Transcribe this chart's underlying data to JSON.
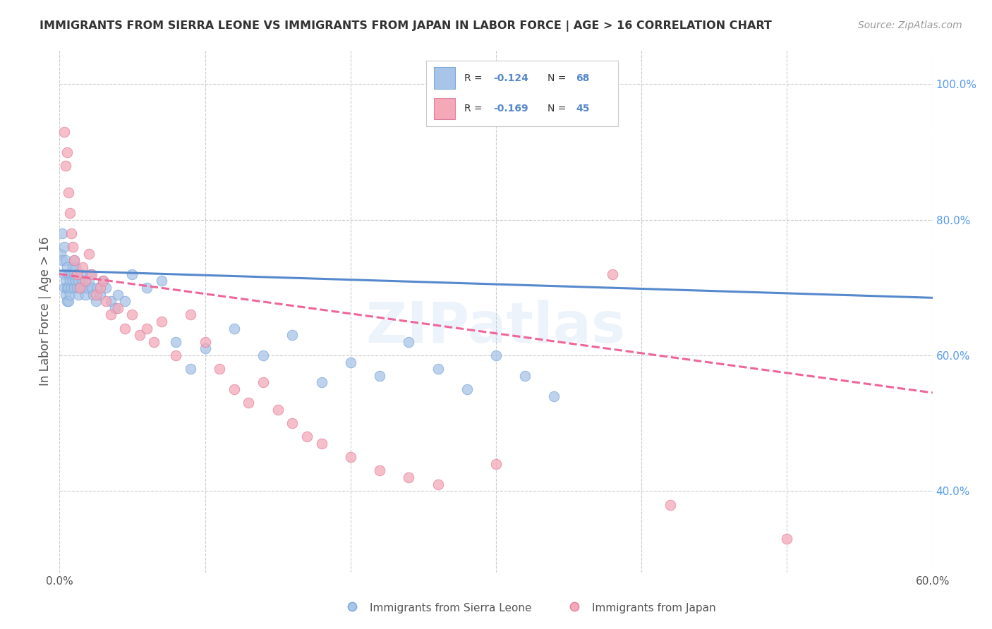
{
  "title": "IMMIGRANTS FROM SIERRA LEONE VS IMMIGRANTS FROM JAPAN IN LABOR FORCE | AGE > 16 CORRELATION CHART",
  "source": "Source: ZipAtlas.com",
  "ylabel": "In Labor Force | Age > 16",
  "xlim": [
    0.0,
    0.6
  ],
  "ylim": [
    0.28,
    1.05
  ],
  "x_ticks": [
    0.0,
    0.1,
    0.2,
    0.3,
    0.4,
    0.5,
    0.6
  ],
  "x_tick_labels": [
    "0.0%",
    "",
    "",
    "",
    "",
    "",
    "60.0%"
  ],
  "y_ticks_right": [
    0.4,
    0.6,
    0.8,
    1.0
  ],
  "y_tick_labels_right": [
    "40.0%",
    "60.0%",
    "80.0%",
    "100.0%"
  ],
  "bg_color": "#ffffff",
  "grid_color": "#cccccc",
  "watermark": "ZIPatlas",
  "sierra_leone_color": "#a8c4e8",
  "sierra_leone_edge": "#7aa8d8",
  "japan_color": "#f4a8b8",
  "japan_edge": "#e080a0",
  "sierra_leone_R": -0.124,
  "sierra_leone_N": 68,
  "japan_R": -0.169,
  "japan_N": 45,
  "sierra_leone_line_color": "#5588cc",
  "japan_line_color": "#ee6699",
  "legend_text_color": "#333333",
  "legend_value_color": "#5588cc",
  "sl_line_x0": 0.0,
  "sl_line_y0": 0.725,
  "sl_line_x1": 0.6,
  "sl_line_y1": 0.685,
  "jp_line_x0": 0.0,
  "jp_line_y0": 0.72,
  "jp_line_x1": 0.6,
  "jp_line_y1": 0.545,
  "sierra_leone_x": [
    0.001,
    0.002,
    0.002,
    0.003,
    0.003,
    0.003,
    0.004,
    0.004,
    0.004,
    0.005,
    0.005,
    0.005,
    0.006,
    0.006,
    0.006,
    0.007,
    0.007,
    0.008,
    0.008,
    0.009,
    0.009,
    0.01,
    0.01,
    0.01,
    0.011,
    0.011,
    0.012,
    0.012,
    0.013,
    0.013,
    0.014,
    0.015,
    0.015,
    0.016,
    0.017,
    0.018,
    0.019,
    0.02,
    0.021,
    0.022,
    0.023,
    0.025,
    0.026,
    0.028,
    0.03,
    0.032,
    0.035,
    0.038,
    0.04,
    0.045,
    0.05,
    0.06,
    0.07,
    0.08,
    0.09,
    0.1,
    0.12,
    0.14,
    0.16,
    0.18,
    0.2,
    0.22,
    0.24,
    0.26,
    0.28,
    0.3,
    0.32,
    0.34
  ],
  "sierra_leone_y": [
    0.75,
    0.78,
    0.74,
    0.76,
    0.72,
    0.7,
    0.74,
    0.71,
    0.69,
    0.73,
    0.7,
    0.68,
    0.72,
    0.7,
    0.68,
    0.71,
    0.69,
    0.72,
    0.7,
    0.73,
    0.71,
    0.74,
    0.72,
    0.7,
    0.73,
    0.71,
    0.72,
    0.7,
    0.71,
    0.69,
    0.7,
    0.72,
    0.7,
    0.71,
    0.7,
    0.69,
    0.7,
    0.71,
    0.72,
    0.7,
    0.69,
    0.68,
    0.7,
    0.69,
    0.71,
    0.7,
    0.68,
    0.67,
    0.69,
    0.68,
    0.72,
    0.7,
    0.71,
    0.62,
    0.58,
    0.61,
    0.64,
    0.6,
    0.63,
    0.56,
    0.59,
    0.57,
    0.62,
    0.58,
    0.55,
    0.6,
    0.57,
    0.54
  ],
  "japan_x": [
    0.003,
    0.004,
    0.005,
    0.006,
    0.007,
    0.008,
    0.009,
    0.01,
    0.012,
    0.014,
    0.016,
    0.018,
    0.02,
    0.022,
    0.025,
    0.028,
    0.03,
    0.032,
    0.035,
    0.04,
    0.045,
    0.05,
    0.055,
    0.06,
    0.065,
    0.07,
    0.08,
    0.09,
    0.1,
    0.11,
    0.12,
    0.13,
    0.14,
    0.15,
    0.16,
    0.17,
    0.18,
    0.2,
    0.22,
    0.24,
    0.26,
    0.3,
    0.38,
    0.42,
    0.5
  ],
  "japan_y": [
    0.93,
    0.88,
    0.9,
    0.84,
    0.81,
    0.78,
    0.76,
    0.74,
    0.72,
    0.7,
    0.73,
    0.71,
    0.75,
    0.72,
    0.69,
    0.7,
    0.71,
    0.68,
    0.66,
    0.67,
    0.64,
    0.66,
    0.63,
    0.64,
    0.62,
    0.65,
    0.6,
    0.66,
    0.62,
    0.58,
    0.55,
    0.53,
    0.56,
    0.52,
    0.5,
    0.48,
    0.47,
    0.45,
    0.43,
    0.42,
    0.41,
    0.44,
    0.72,
    0.38,
    0.33
  ]
}
